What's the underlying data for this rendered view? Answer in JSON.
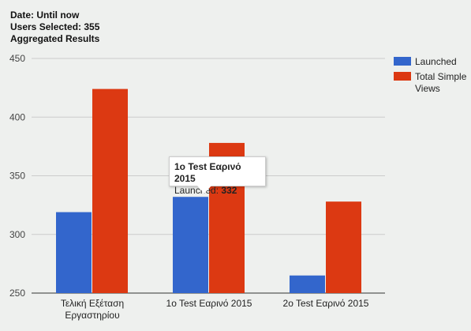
{
  "header": {
    "line1": "Date: Until now",
    "line2": "Users Selected: 355",
    "line3": "Aggregated Results"
  },
  "tooltip": {
    "title": "1o Test Εαρινό 2015",
    "label": "Launched: ",
    "value": "332"
  },
  "colors": {
    "launched": "#3366cc",
    "views": "#dc3912",
    "grid": "#cccccc"
  },
  "chart_data": {
    "type": "bar",
    "title": "",
    "xlabel": "",
    "ylabel": "",
    "ylim": [
      250,
      450
    ],
    "yticks": [
      "450",
      "400",
      "350",
      "300",
      "250"
    ],
    "categories": [
      [
        "Τελική Εξέταση",
        "Εργαστηρίου"
      ],
      [
        "1o Test Εαρινό 2015"
      ],
      [
        "2o Test Εαρινό 2015"
      ]
    ],
    "series": [
      {
        "name": "Launched",
        "values": [
          319,
          332,
          265
        ]
      },
      {
        "name": "Total Simple Views",
        "values": [
          424,
          378,
          328
        ]
      }
    ],
    "legend": {
      "position": "right",
      "labels": [
        "Launched",
        "Total Simple",
        "Views"
      ]
    },
    "grid": true
  }
}
